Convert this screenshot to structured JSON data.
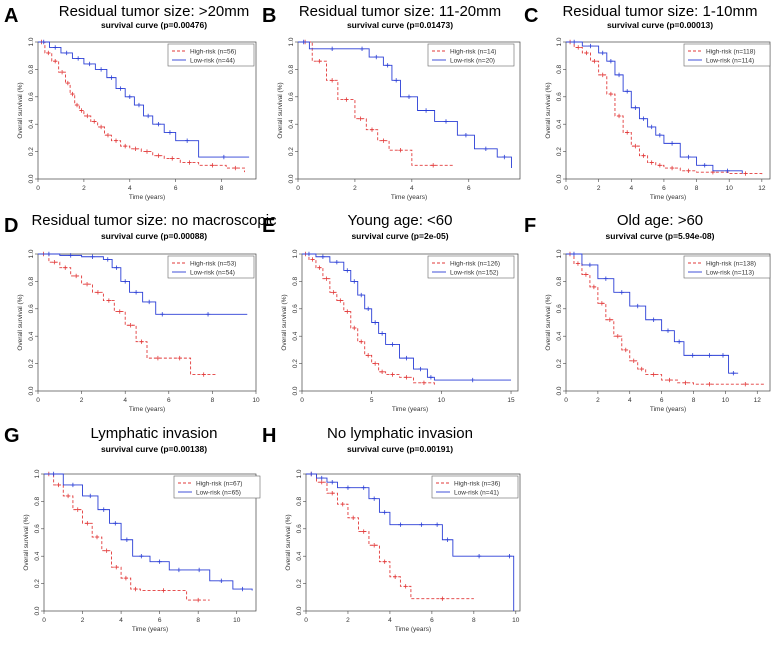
{
  "chart_data": [
    {
      "type": "line",
      "letter": "A",
      "heading": "Residual tumor size: >20mm",
      "subtitle": "survival curve (p=0.00476)",
      "xlabel": "Time (years)",
      "ylabel": "Overall survival (%)",
      "xlim": [
        0,
        9.5
      ],
      "xticks": [
        0,
        2,
        4,
        6,
        8
      ],
      "ylim": [
        0,
        1
      ],
      "yticks": [
        "0.0",
        "0.2",
        "0.4",
        "0.6",
        "0.8",
        "1.0"
      ],
      "legend": "top-right",
      "series": [
        {
          "name": "High-risk (n=56)",
          "color": "#e23a3a",
          "dash": true,
          "x": [
            0,
            0.3,
            0.6,
            0.9,
            1.2,
            1.4,
            1.6,
            1.8,
            2.0,
            2.3,
            2.6,
            2.9,
            3.2,
            3.6,
            4.0,
            4.5,
            5.0,
            5.5,
            6.2,
            7.0,
            8.2,
            9.0
          ],
          "y": [
            1.0,
            0.92,
            0.86,
            0.78,
            0.7,
            0.62,
            0.54,
            0.5,
            0.46,
            0.42,
            0.38,
            0.32,
            0.28,
            0.24,
            0.22,
            0.2,
            0.17,
            0.15,
            0.12,
            0.1,
            0.08,
            0.05
          ]
        },
        {
          "name": "Low-risk (n=44)",
          "color": "#2b3fd6",
          "dash": false,
          "x": [
            0,
            0.5,
            1.0,
            1.5,
            2.0,
            2.5,
            3.0,
            3.4,
            3.8,
            4.2,
            4.6,
            5.0,
            5.5,
            6.0,
            7.0,
            9.2
          ],
          "y": [
            1.0,
            0.96,
            0.92,
            0.88,
            0.84,
            0.8,
            0.74,
            0.66,
            0.6,
            0.54,
            0.46,
            0.4,
            0.34,
            0.28,
            0.16,
            0.16
          ]
        }
      ]
    },
    {
      "type": "line",
      "letter": "B",
      "heading": "Residual tumor size: 11-20mm",
      "subtitle": "survival curve (p=0.01473)",
      "xlabel": "Time (years)",
      "ylabel": "Overall survival (%)",
      "xlim": [
        0,
        7.8
      ],
      "xticks": [
        0,
        2,
        4,
        6
      ],
      "ylim": [
        0,
        1
      ],
      "yticks": [
        "0.0",
        "0.2",
        "0.4",
        "0.6",
        "0.8",
        "1.0"
      ],
      "legend": "top-right",
      "series": [
        {
          "name": "High-risk (n=14)",
          "color": "#e23a3a",
          "dash": true,
          "x": [
            0,
            0.5,
            1.0,
            1.4,
            2.0,
            2.4,
            2.8,
            3.2,
            4.0,
            5.5
          ],
          "y": [
            1.0,
            0.86,
            0.72,
            0.58,
            0.44,
            0.36,
            0.28,
            0.21,
            0.1,
            0.1
          ]
        },
        {
          "name": "Low-risk (n=20)",
          "color": "#2b3fd6",
          "dash": false,
          "x": [
            0,
            0.4,
            2.0,
            2.5,
            3.0,
            3.3,
            3.6,
            4.2,
            4.8,
            5.6,
            6.2,
            7.0,
            7.5
          ],
          "y": [
            1.0,
            0.95,
            0.95,
            0.89,
            0.83,
            0.72,
            0.6,
            0.5,
            0.42,
            0.32,
            0.22,
            0.16,
            0.08
          ]
        }
      ]
    },
    {
      "type": "line",
      "letter": "C",
      "heading": "Residual tumor size: 1-10mm",
      "subtitle": "survival curve (p=0.00013)",
      "xlabel": "Time (years)",
      "ylabel": "Overall survival (%)",
      "xlim": [
        0,
        12.5
      ],
      "xticks": [
        0,
        2,
        4,
        6,
        8,
        10,
        12
      ],
      "ylim": [
        0,
        1
      ],
      "yticks": [
        "0.0",
        "0.2",
        "0.4",
        "0.6",
        "0.8",
        "1.0"
      ],
      "legend": "top-right",
      "series": [
        {
          "name": "High-risk (n=118)",
          "color": "#e23a3a",
          "dash": true,
          "x": [
            0,
            0.5,
            1.0,
            1.5,
            2.0,
            2.5,
            3.0,
            3.5,
            4.0,
            4.5,
            5.0,
            5.5,
            6.0,
            7.0,
            8.0,
            10.0,
            12.0
          ],
          "y": [
            1.0,
            0.96,
            0.92,
            0.86,
            0.76,
            0.62,
            0.46,
            0.34,
            0.24,
            0.17,
            0.12,
            0.1,
            0.08,
            0.06,
            0.05,
            0.04,
            0.03
          ]
        },
        {
          "name": "Low-risk (n=114)",
          "color": "#2b3fd6",
          "dash": false,
          "x": [
            0,
            1.0,
            2.0,
            2.5,
            3.0,
            3.5,
            4.0,
            4.5,
            5.0,
            5.5,
            6.0,
            7.0,
            8.0,
            9.0,
            10.8
          ],
          "y": [
            1.0,
            0.97,
            0.92,
            0.86,
            0.76,
            0.64,
            0.52,
            0.44,
            0.38,
            0.32,
            0.26,
            0.16,
            0.1,
            0.06,
            0.04
          ]
        }
      ]
    },
    {
      "type": "line",
      "letter": "D",
      "heading": "Residual tumor size: no macroscopic",
      "subtitle": "survival curve (p=0.00088)",
      "xlabel": "Time (years)",
      "ylabel": "Overall survival (%)",
      "xlim": [
        0,
        10
      ],
      "xticks": [
        0,
        2,
        4,
        6,
        8,
        10
      ],
      "ylim": [
        0,
        1
      ],
      "yticks": [
        "0.0",
        "0.2",
        "0.4",
        "0.6",
        "0.8",
        "1.0"
      ],
      "legend": "top-right",
      "series": [
        {
          "name": "High-risk (n=53)",
          "color": "#e23a3a",
          "dash": true,
          "x": [
            0,
            0.5,
            1.0,
            1.5,
            2.0,
            2.5,
            3.0,
            3.5,
            4.0,
            4.5,
            5.0,
            6.0,
            7.0,
            8.2
          ],
          "y": [
            1.0,
            0.94,
            0.9,
            0.84,
            0.78,
            0.72,
            0.66,
            0.58,
            0.48,
            0.36,
            0.24,
            0.24,
            0.12,
            0.12
          ]
        },
        {
          "name": "Low-risk (n=54)",
          "color": "#2b3fd6",
          "dash": false,
          "x": [
            0,
            1.0,
            2.0,
            3.0,
            3.4,
            3.8,
            4.2,
            4.8,
            5.4,
            6.0,
            9.6
          ],
          "y": [
            1.0,
            0.99,
            0.98,
            0.96,
            0.9,
            0.8,
            0.72,
            0.65,
            0.56,
            0.56,
            0.56
          ]
        }
      ]
    },
    {
      "type": "line",
      "letter": "E",
      "heading": "Young age: <60",
      "subtitle": "survival curve (p=2e-05)",
      "xlabel": "Time (years)",
      "ylabel": "Overall survival (%)",
      "xlim": [
        0,
        15.5
      ],
      "xticks": [
        0,
        5,
        10,
        15
      ],
      "ylim": [
        0,
        1
      ],
      "yticks": [
        "0.0",
        "0.2",
        "0.4",
        "0.6",
        "0.8",
        "1.0"
      ],
      "legend": "top-right",
      "series": [
        {
          "name": "High-risk (n=126)",
          "color": "#e23a3a",
          "dash": true,
          "x": [
            0,
            0.5,
            1.0,
            1.5,
            2.0,
            2.5,
            3.0,
            3.5,
            4.0,
            4.5,
            5.0,
            5.5,
            6.0,
            7.0,
            8.0,
            9.5
          ],
          "y": [
            1.0,
            0.96,
            0.9,
            0.82,
            0.72,
            0.66,
            0.58,
            0.46,
            0.36,
            0.26,
            0.2,
            0.14,
            0.12,
            0.1,
            0.06,
            0.04
          ]
        },
        {
          "name": "Low-risk (n=152)",
          "color": "#2b3fd6",
          "dash": false,
          "x": [
            0,
            1.0,
            2.0,
            3.0,
            3.5,
            4.0,
            4.5,
            5.0,
            5.5,
            6.0,
            7.0,
            8.0,
            9.0,
            9.5,
            15.0
          ],
          "y": [
            1.0,
            0.98,
            0.94,
            0.88,
            0.8,
            0.7,
            0.6,
            0.5,
            0.42,
            0.34,
            0.24,
            0.16,
            0.1,
            0.08,
            0.08
          ]
        }
      ]
    },
    {
      "type": "line",
      "letter": "F",
      "heading": "Old age: >60",
      "subtitle": "survival curve (p=5.94e-08)",
      "xlabel": "Time (years)",
      "ylabel": "Overall survival (%)",
      "xlim": [
        0,
        12.8
      ],
      "xticks": [
        0,
        2,
        4,
        6,
        8,
        10,
        12
      ],
      "ylim": [
        0,
        1
      ],
      "yticks": [
        "0.0",
        "0.2",
        "0.4",
        "0.6",
        "0.8",
        "1.0"
      ],
      "legend": "top-right",
      "series": [
        {
          "name": "High-risk (n=138)",
          "color": "#e23a3a",
          "dash": true,
          "x": [
            0,
            0.5,
            1.0,
            1.5,
            2.0,
            2.5,
            3.0,
            3.5,
            4.0,
            4.5,
            5.0,
            6.0,
            7.0,
            8.0,
            10.0,
            12.5
          ],
          "y": [
            1.0,
            0.93,
            0.85,
            0.76,
            0.64,
            0.52,
            0.4,
            0.3,
            0.22,
            0.16,
            0.12,
            0.08,
            0.06,
            0.05,
            0.05,
            0.05
          ]
        },
        {
          "name": "Low-risk (n=113)",
          "color": "#2b3fd6",
          "dash": false,
          "x": [
            0,
            1.0,
            2.0,
            3.0,
            4.0,
            5.0,
            6.0,
            6.8,
            7.4,
            8.5,
            9.5,
            10.2,
            10.8
          ],
          "y": [
            1.0,
            0.92,
            0.82,
            0.72,
            0.62,
            0.52,
            0.44,
            0.36,
            0.26,
            0.26,
            0.26,
            0.13,
            0.13
          ]
        }
      ]
    },
    {
      "type": "line",
      "letter": "G",
      "heading": "Lymphatic invasion",
      "subtitle": "survival curve (p=0.00138)",
      "xlabel": "Time (years)",
      "ylabel": "Overall survival (%)",
      "xlim": [
        0,
        11
      ],
      "xticks": [
        0,
        2,
        4,
        6,
        8,
        10
      ],
      "ylim": [
        0,
        1
      ],
      "yticks": [
        "0.0",
        "0.2",
        "0.4",
        "0.6",
        "0.8",
        "1.0"
      ],
      "legend": "top-right",
      "series": [
        {
          "name": "High-risk (n=67)",
          "color": "#e23a3a",
          "dash": true,
          "x": [
            0,
            0.5,
            1.0,
            1.5,
            2.0,
            2.5,
            3.0,
            3.5,
            4.0,
            4.5,
            5.0,
            7.4,
            8.6
          ],
          "y": [
            1.0,
            0.92,
            0.84,
            0.74,
            0.64,
            0.54,
            0.44,
            0.32,
            0.24,
            0.16,
            0.15,
            0.08,
            0.08
          ]
        },
        {
          "name": "Low-risk (n=65)",
          "color": "#2b3fd6",
          "dash": false,
          "x": [
            0,
            1.0,
            2.0,
            2.8,
            3.4,
            4.0,
            4.6,
            5.5,
            6.5,
            7.5,
            8.6,
            9.8,
            10.8
          ],
          "y": [
            1.0,
            0.92,
            0.84,
            0.74,
            0.64,
            0.52,
            0.4,
            0.36,
            0.3,
            0.3,
            0.22,
            0.16,
            0.15
          ]
        }
      ]
    },
    {
      "type": "line",
      "letter": "H",
      "heading": "No lymphatic invasion",
      "subtitle": "survival curve (p=0.00191)",
      "xlabel": "Time (years)",
      "ylabel": "Overall survival (%)",
      "xlim": [
        0,
        10.2
      ],
      "xticks": [
        0,
        2,
        4,
        6,
        8,
        10
      ],
      "ylim": [
        0,
        1
      ],
      "yticks": [
        "0.0",
        "0.2",
        "0.4",
        "0.6",
        "0.8",
        "1.0"
      ],
      "legend": "top-right",
      "series": [
        {
          "name": "High-risk (n=36)",
          "color": "#e23a3a",
          "dash": true,
          "x": [
            0,
            0.5,
            1.0,
            1.5,
            2.0,
            2.5,
            3.0,
            3.5,
            4.0,
            4.5,
            5.0,
            8.0
          ],
          "y": [
            1.0,
            0.94,
            0.86,
            0.78,
            0.68,
            0.58,
            0.48,
            0.36,
            0.25,
            0.18,
            0.09,
            0.09
          ]
        },
        {
          "name": "Low-risk (n=41)",
          "color": "#2b3fd6",
          "dash": false,
          "x": [
            0,
            0.5,
            1.0,
            1.5,
            2.5,
            3.0,
            3.5,
            4.0,
            5.0,
            6.0,
            6.5,
            7.0,
            9.5,
            9.9
          ],
          "y": [
            1.0,
            0.97,
            0.94,
            0.9,
            0.9,
            0.82,
            0.72,
            0.63,
            0.63,
            0.63,
            0.52,
            0.4,
            0.4,
            0.0
          ]
        }
      ]
    }
  ]
}
